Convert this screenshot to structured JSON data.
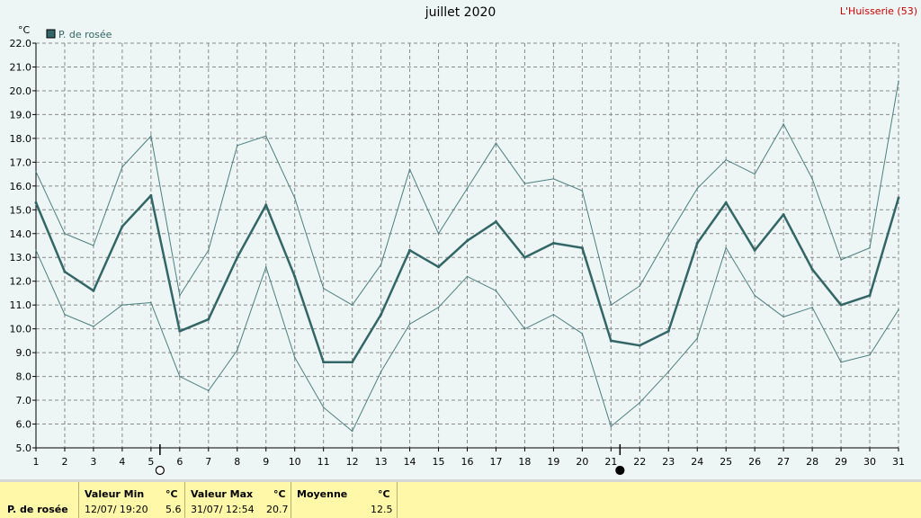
{
  "chart_data": {
    "type": "line",
    "title": "juillet 2020",
    "station": "L'Huisserie (53)",
    "ylabel": "°C",
    "ylim": [
      5.0,
      22.0
    ],
    "y_ticks": [
      "5.0",
      "6.0",
      "7.0",
      "8.0",
      "9.0",
      "10.0",
      "11.0",
      "12.0",
      "13.0",
      "14.0",
      "15.0",
      "16.0",
      "17.0",
      "18.0",
      "19.0",
      "20.0",
      "21.0",
      "22.0"
    ],
    "x": [
      1,
      2,
      3,
      4,
      5,
      6,
      7,
      8,
      9,
      10,
      11,
      12,
      13,
      14,
      15,
      16,
      17,
      18,
      19,
      20,
      21,
      22,
      23,
      24,
      25,
      26,
      27,
      28,
      29,
      30,
      31
    ],
    "grid": true,
    "legend_position": "top-left",
    "series": [
      {
        "name": "P. de rosée",
        "role": "mean",
        "color": "#336666",
        "values": [
          15.3,
          12.4,
          11.6,
          14.3,
          15.6,
          9.9,
          10.4,
          13.0,
          15.2,
          12.2,
          8.6,
          8.6,
          10.6,
          13.3,
          12.6,
          13.7,
          14.5,
          13.0,
          13.6,
          13.4,
          9.5,
          9.3,
          9.9,
          13.6,
          15.3,
          13.3,
          14.8,
          12.5,
          11.0,
          11.4,
          15.5
        ]
      },
      {
        "name": "",
        "role": "max",
        "color": "#4d8080",
        "values": [
          16.6,
          14.0,
          13.5,
          16.8,
          18.1,
          11.4,
          13.3,
          17.7,
          18.1,
          15.5,
          11.7,
          11.0,
          12.7,
          16.7,
          14.0,
          15.9,
          17.8,
          16.1,
          16.3,
          15.8,
          11.0,
          11.8,
          13.9,
          15.9,
          17.1,
          16.5,
          18.6,
          16.3,
          12.9,
          13.4,
          20.4
        ]
      },
      {
        "name": "",
        "role": "min",
        "color": "#4d8080",
        "values": [
          13.3,
          10.6,
          10.1,
          11.0,
          11.1,
          8.0,
          7.4,
          9.1,
          12.6,
          8.8,
          6.7,
          5.7,
          8.2,
          10.2,
          10.9,
          12.2,
          11.6,
          10.0,
          10.6,
          9.8,
          5.9,
          6.9,
          8.2,
          9.6,
          13.4,
          11.4,
          10.5,
          10.9,
          8.6,
          8.9,
          10.8
        ]
      }
    ],
    "moon_markers": [
      {
        "day": 5,
        "phase": "full"
      },
      {
        "day": 21,
        "phase": "new"
      }
    ]
  },
  "footer": {
    "series_label": "P. de rosée",
    "min_header": "Valeur Min",
    "min_unit": "°C",
    "min_date": "12/07/  19:20",
    "min_value": "5.6",
    "max_header": "Valeur Max",
    "max_unit": "°C",
    "max_date": "31/07/  12:54",
    "max_value": "20.7",
    "mean_header": "Moyenne",
    "mean_unit": "°C",
    "mean_value": "12.5"
  }
}
